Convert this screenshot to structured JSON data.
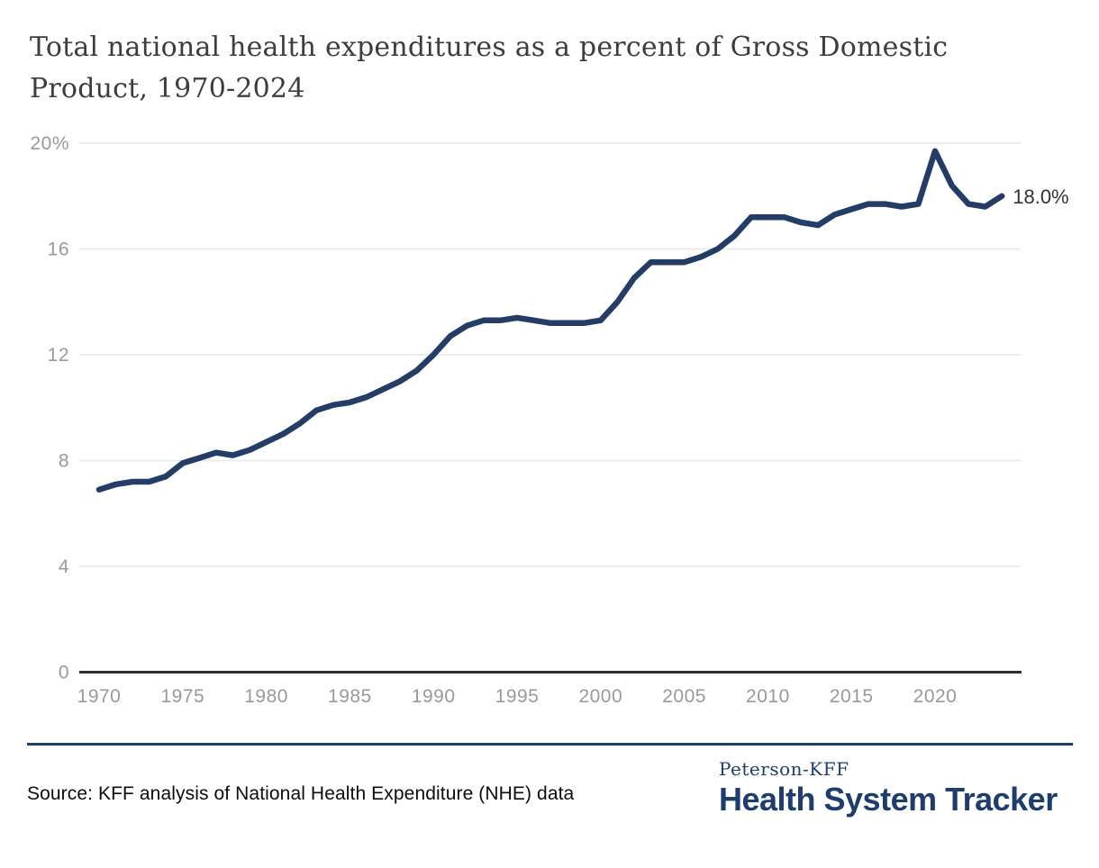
{
  "title": {
    "line1": "Total national health expenditures as a percent of Gross Domestic",
    "line2": "Product, 1970-2024"
  },
  "chart_data": {
    "type": "line",
    "title": "Total national health expenditures as a percent of Gross Domestic Product, 1970-2024",
    "series_name": "Total national health expenditures as a percent of GDP",
    "x": [
      1970,
      1971,
      1972,
      1973,
      1974,
      1975,
      1976,
      1977,
      1978,
      1979,
      1980,
      1981,
      1982,
      1983,
      1984,
      1985,
      1986,
      1987,
      1988,
      1989,
      1990,
      1991,
      1992,
      1993,
      1994,
      1995,
      1996,
      1997,
      1998,
      1999,
      2000,
      2001,
      2002,
      2003,
      2004,
      2005,
      2006,
      2007,
      2008,
      2009,
      2010,
      2011,
      2012,
      2013,
      2014,
      2015,
      2016,
      2017,
      2018,
      2019,
      2020,
      2021,
      2022,
      2023,
      2024
    ],
    "values": [
      6.9,
      7.1,
      7.2,
      7.2,
      7.4,
      7.9,
      8.1,
      8.3,
      8.2,
      8.4,
      8.7,
      9.0,
      9.4,
      9.9,
      10.1,
      10.2,
      10.4,
      10.7,
      11.0,
      11.4,
      12.0,
      12.7,
      13.1,
      13.3,
      13.3,
      13.4,
      13.3,
      13.2,
      13.2,
      13.2,
      13.3,
      14.0,
      14.9,
      15.5,
      15.5,
      15.5,
      15.7,
      16.0,
      16.5,
      17.2,
      17.2,
      17.2,
      17.0,
      16.9,
      17.3,
      17.5,
      17.7,
      17.7,
      17.6,
      17.7,
      19.7,
      18.4,
      17.7,
      17.6,
      18.0
    ],
    "end_label": "18.0%",
    "ylim": [
      0,
      20
    ],
    "xlabel": "",
    "ylabel": "",
    "grid": true,
    "legend": "none",
    "y_ticks": [
      {
        "value": 20,
        "label": "20%"
      },
      {
        "value": 16,
        "label": "16"
      },
      {
        "value": 12,
        "label": "12"
      },
      {
        "value": 8,
        "label": "8"
      },
      {
        "value": 4,
        "label": "4"
      },
      {
        "value": 0,
        "label": "0"
      }
    ],
    "x_ticks": [
      {
        "year": 1970,
        "label": "1970"
      },
      {
        "year": 1975,
        "label": "1975"
      },
      {
        "year": 1980,
        "label": "1980"
      },
      {
        "year": 1985,
        "label": "1985"
      },
      {
        "year": 1990,
        "label": "1990"
      },
      {
        "year": 1995,
        "label": "1995"
      },
      {
        "year": 2000,
        "label": "2000"
      },
      {
        "year": 2005,
        "label": "2005"
      },
      {
        "year": 2010,
        "label": "2010"
      },
      {
        "year": 2015,
        "label": "2015"
      },
      {
        "year": 2020,
        "label": "2020"
      }
    ]
  },
  "footer": {
    "source": "Source: KFF analysis of National Health Expenditure (NHE) data",
    "logo_line1": "Peterson-KFF",
    "logo_line2": "Health System Tracker"
  },
  "colors": {
    "background": "#ffffff",
    "line": "#243d66",
    "grid": "#e7e7e7",
    "axis": "#2e2e33",
    "tick_label": "#999999",
    "end_label": "#333333",
    "navy": "#1d3d6d",
    "title_text": "#3d3d3d",
    "source_text": "#0c0c0c"
  }
}
